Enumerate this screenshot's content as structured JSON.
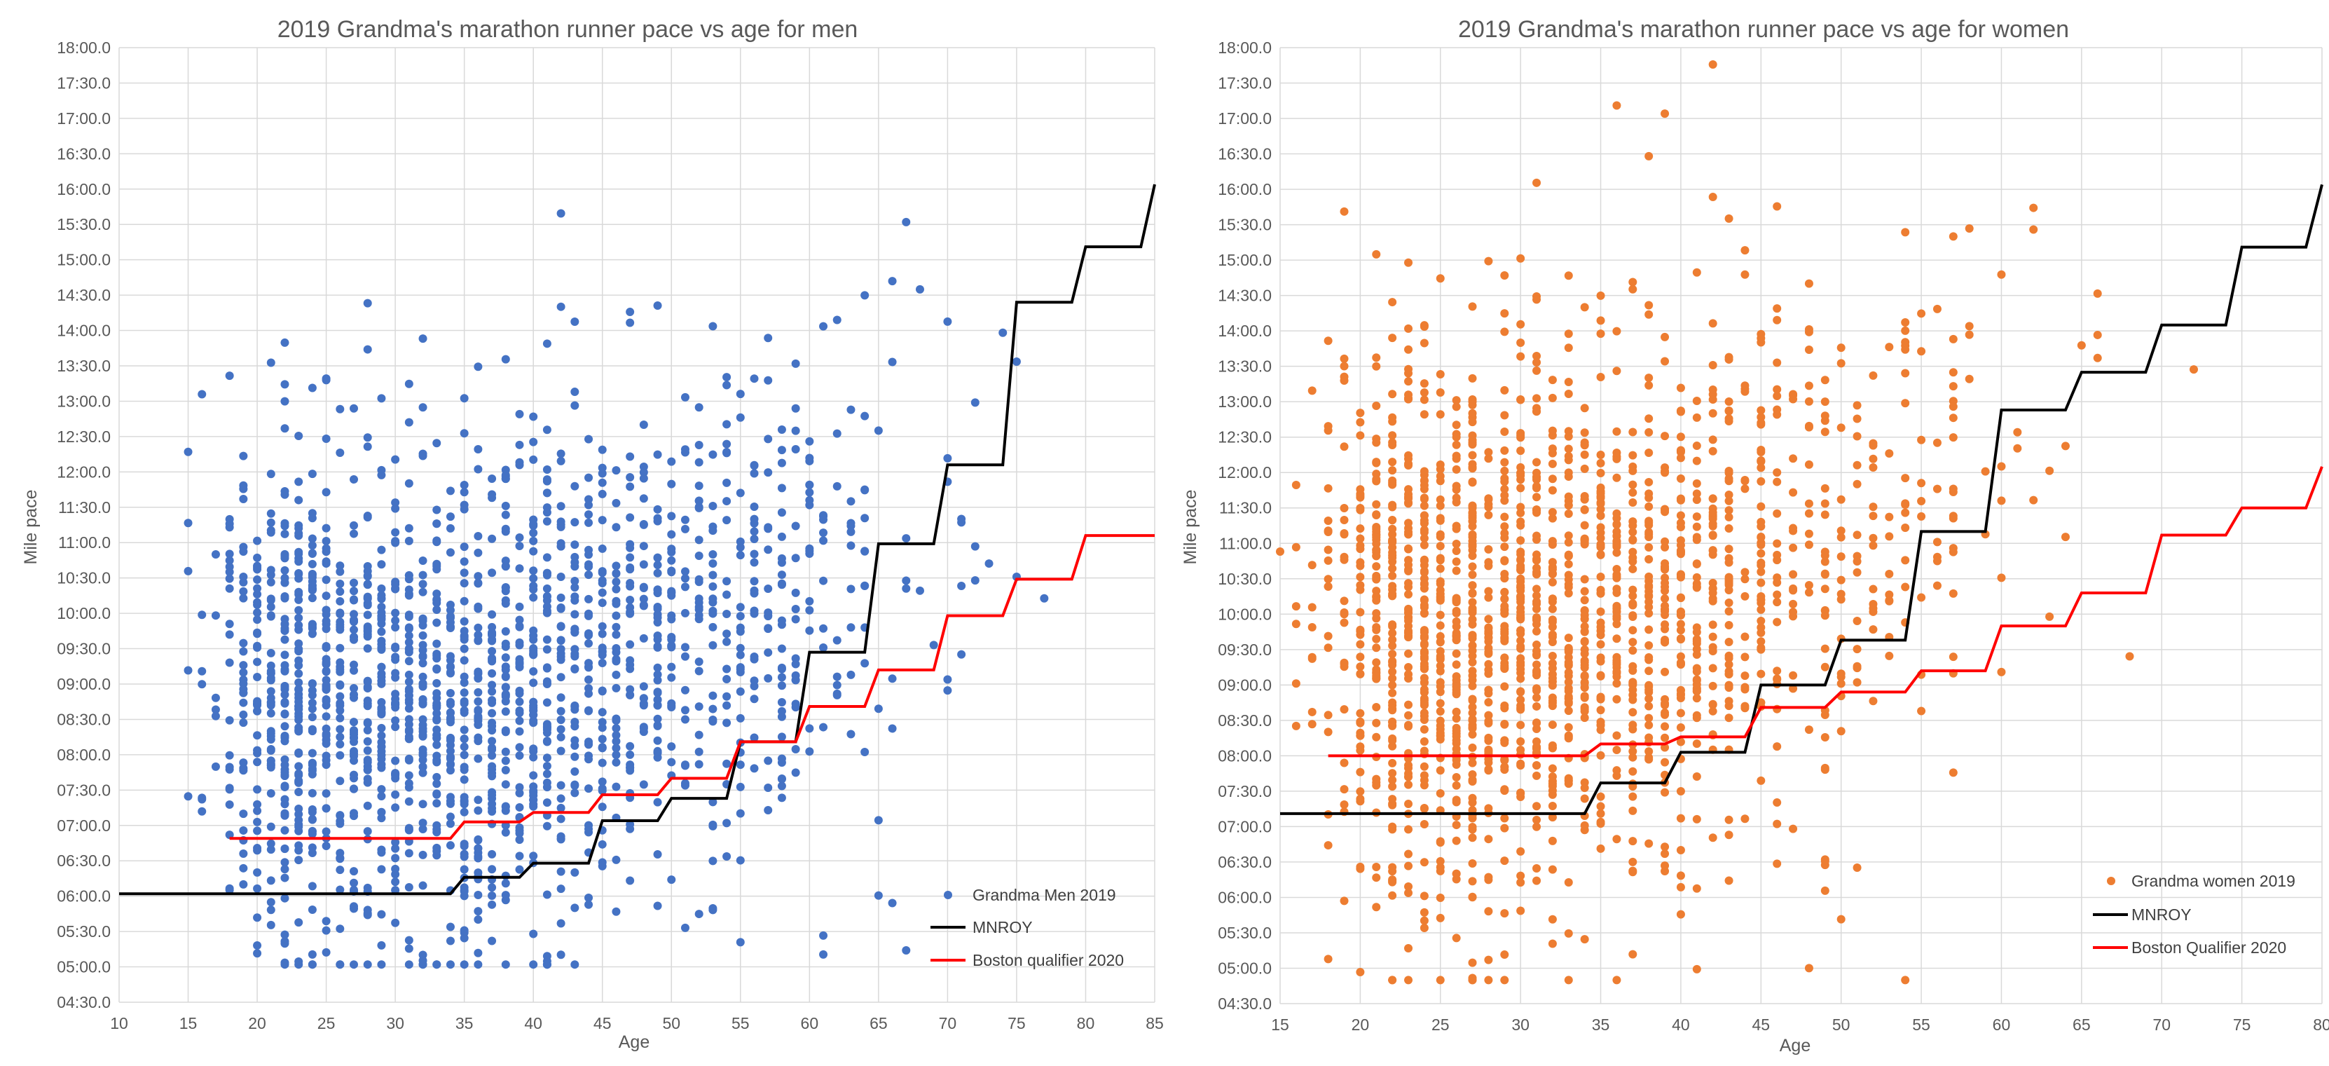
{
  "chart_data": [
    {
      "type": "scatter",
      "title": "2019 Grandma's marathon runner pace vs age for men",
      "xlabel": "Age",
      "ylabel": "Mile pace",
      "xlim": [
        10,
        85
      ],
      "ylim_minutes": [
        270,
        1080
      ],
      "x_ticks": [
        10,
        15,
        20,
        25,
        30,
        35,
        40,
        45,
        50,
        55,
        60,
        65,
        70,
        75,
        80,
        85
      ],
      "y_ticks": [
        "18:00.0",
        "17:30.0",
        "17:00.0",
        "16:30.0",
        "16:00.0",
        "15:30.0",
        "15:00.0",
        "14:30.0",
        "14:00.0",
        "13:30.0",
        "13:00.0",
        "12:30.0",
        "12:00.0",
        "11:30.0",
        "11:00.0",
        "10:30.0",
        "10:00.0",
        "09:30.0",
        "09:00.0",
        "08:30.0",
        "08:00.0",
        "07:30.0",
        "07:00.0",
        "06:30.0",
        "06:00.0",
        "05:30.0",
        "05:00.0",
        "04:30.0"
      ],
      "grid": true,
      "legend_position": "bottom-right",
      "series": [
        {
          "name": "Grandma Men 2019",
          "kind": "scatter",
          "color": "#4472c4",
          "point_count": 1800,
          "seed": 1,
          "center_min": [
            [
              15,
              540
            ],
            [
              25,
              520
            ],
            [
              35,
              525
            ],
            [
              45,
              560
            ],
            [
              55,
              600
            ],
            [
              65,
              640
            ],
            [
              75,
              690
            ]
          ],
          "spread_min": 110,
          "age_weights": [
            [
              11,
              1
            ],
            [
              12,
              1
            ],
            [
              13,
              1
            ],
            [
              14,
              4
            ],
            [
              15,
              8
            ],
            [
              16,
              14
            ],
            [
              17,
              22
            ],
            [
              18,
              40
            ],
            [
              19,
              55
            ],
            [
              20,
              72
            ],
            [
              21,
              84
            ],
            [
              22,
              92
            ],
            [
              23,
              98
            ],
            [
              24,
              100
            ],
            [
              25,
              100
            ],
            [
              26,
              100
            ],
            [
              27,
              98
            ],
            [
              28,
              96
            ],
            [
              29,
              94
            ],
            [
              30,
              92
            ],
            [
              31,
              90
            ],
            [
              32,
              88
            ],
            [
              33,
              86
            ],
            [
              34,
              84
            ],
            [
              35,
              82
            ],
            [
              36,
              80
            ],
            [
              37,
              78
            ],
            [
              38,
              76
            ],
            [
              39,
              74
            ],
            [
              40,
              72
            ],
            [
              41,
              70
            ],
            [
              42,
              68
            ],
            [
              43,
              66
            ],
            [
              44,
              64
            ],
            [
              45,
              62
            ],
            [
              46,
              60
            ],
            [
              47,
              58
            ],
            [
              48,
              56
            ],
            [
              49,
              54
            ],
            [
              50,
              52
            ],
            [
              51,
              50
            ],
            [
              52,
              48
            ],
            [
              53,
              46
            ],
            [
              54,
              44
            ],
            [
              55,
              42
            ],
            [
              56,
              40
            ],
            [
              57,
              36
            ],
            [
              58,
              32
            ],
            [
              59,
              28
            ],
            [
              60,
              26
            ],
            [
              61,
              22
            ],
            [
              62,
              20
            ],
            [
              63,
              17
            ],
            [
              64,
              15
            ],
            [
              65,
              13
            ],
            [
              66,
              11
            ],
            [
              67,
              9
            ],
            [
              68,
              8
            ],
            [
              69,
              7
            ],
            [
              70,
              6
            ],
            [
              71,
              5
            ],
            [
              72,
              4
            ],
            [
              73,
              3
            ],
            [
              74,
              3
            ],
            [
              75,
              2
            ],
            [
              77,
              1
            ],
            [
              79,
              1
            ],
            [
              81,
              1
            ]
          ],
          "pace_range_min": [
            302,
            1078
          ]
        },
        {
          "name": "MNROY",
          "kind": "step",
          "color": "#000000",
          "points": [
            [
              10,
              362
            ],
            [
              34,
              362
            ],
            [
              35,
              376
            ],
            [
              39,
              376
            ],
            [
              40,
              388
            ],
            [
              44,
              388
            ],
            [
              45,
              424
            ],
            [
              49,
              424
            ],
            [
              50,
              443
            ],
            [
              54,
              443
            ],
            [
              55,
              491
            ],
            [
              59,
              491
            ],
            [
              60,
              567
            ],
            [
              64,
              567
            ],
            [
              65,
              659
            ],
            [
              69,
              659
            ],
            [
              70,
              726
            ],
            [
              74,
              726
            ],
            [
              75,
              864
            ],
            [
              79,
              864
            ],
            [
              80,
              911
            ],
            [
              84,
              911
            ],
            [
              85,
              964
            ]
          ]
        },
        {
          "name": "Boston qualifier 2020",
          "kind": "step",
          "color": "#ff0000",
          "points": [
            [
              18,
              409
            ],
            [
              34,
              409
            ],
            [
              35,
              423
            ],
            [
              39,
              423
            ],
            [
              40,
              431
            ],
            [
              44,
              431
            ],
            [
              45,
              446
            ],
            [
              49,
              446
            ],
            [
              50,
              460
            ],
            [
              54,
              460
            ],
            [
              55,
              491
            ],
            [
              59,
              491
            ],
            [
              60,
              521
            ],
            [
              64,
              521
            ],
            [
              65,
              552
            ],
            [
              69,
              552
            ],
            [
              70,
              598
            ],
            [
              74,
              598
            ],
            [
              75,
              629
            ],
            [
              79,
              629
            ],
            [
              80,
              666
            ],
            [
              85,
              666
            ]
          ]
        }
      ]
    },
    {
      "type": "scatter",
      "title": "2019 Grandma's marathon runner pace vs age for women",
      "xlabel": "Age",
      "ylabel": "Mile pace",
      "xlim": [
        15,
        80
      ],
      "ylim_minutes": [
        270,
        1080
      ],
      "x_ticks": [
        15,
        20,
        25,
        30,
        35,
        40,
        45,
        50,
        55,
        60,
        65,
        70,
        75,
        80
      ],
      "y_ticks": [
        "18:00.0",
        "17:30.0",
        "17:00.0",
        "16:30.0",
        "16:00.0",
        "15:30.0",
        "15:00.0",
        "14:30.0",
        "14:00.0",
        "13:30.0",
        "13:00.0",
        "12:30.0",
        "12:00.0",
        "11:30.0",
        "11:00.0",
        "10:30.0",
        "10:00.0",
        "09:30.0",
        "09:00.0",
        "08:30.0",
        "08:00.0",
        "07:30.0",
        "07:00.0",
        "06:30.0",
        "06:00.0",
        "05:30.0",
        "05:00.0",
        "04:30.0"
      ],
      "grid": true,
      "legend_position": "bottom-right",
      "series": [
        {
          "name": "Grandma women 2019",
          "kind": "scatter",
          "color": "#ed7d31",
          "point_count": 1800,
          "seed": 7,
          "center_min": [
            [
              15,
              600
            ],
            [
              25,
              590
            ],
            [
              35,
              595
            ],
            [
              45,
              630
            ],
            [
              55,
              680
            ],
            [
              65,
              720
            ],
            [
              75,
              760
            ]
          ],
          "spread_min": 115,
          "age_weights": [
            [
              15,
              2
            ],
            [
              16,
              4
            ],
            [
              17,
              8
            ],
            [
              18,
              20
            ],
            [
              19,
              40
            ],
            [
              20,
              60
            ],
            [
              21,
              75
            ],
            [
              22,
              88
            ],
            [
              23,
              96
            ],
            [
              24,
              100
            ],
            [
              25,
              100
            ],
            [
              26,
              98
            ],
            [
              27,
              96
            ],
            [
              28,
              94
            ],
            [
              29,
              92
            ],
            [
              30,
              90
            ],
            [
              31,
              86
            ],
            [
              32,
              82
            ],
            [
              33,
              78
            ],
            [
              34,
              74
            ],
            [
              35,
              72
            ],
            [
              36,
              70
            ],
            [
              37,
              68
            ],
            [
              38,
              66
            ],
            [
              39,
              64
            ],
            [
              40,
              62
            ],
            [
              41,
              58
            ],
            [
              42,
              54
            ],
            [
              43,
              50
            ],
            [
              44,
              46
            ],
            [
              45,
              42
            ],
            [
              46,
              38
            ],
            [
              47,
              34
            ],
            [
              48,
              30
            ],
            [
              49,
              26
            ],
            [
              50,
              22
            ],
            [
              51,
              20
            ],
            [
              52,
              18
            ],
            [
              53,
              16
            ],
            [
              54,
              14
            ],
            [
              55,
              12
            ],
            [
              56,
              10
            ],
            [
              57,
              9
            ],
            [
              58,
              8
            ],
            [
              59,
              7
            ],
            [
              60,
              6
            ],
            [
              61,
              5
            ],
            [
              62,
              4
            ],
            [
              63,
              3
            ],
            [
              64,
              3
            ],
            [
              65,
              2
            ],
            [
              66,
              2
            ],
            [
              67,
              2
            ],
            [
              68,
              1
            ],
            [
              69,
              1
            ],
            [
              70,
              1
            ],
            [
              72,
              1
            ],
            [
              76,
              1
            ]
          ],
          "pace_range_min": [
            290,
            1078
          ]
        },
        {
          "name": "MNROY",
          "kind": "step",
          "color": "#000000",
          "points": [
            [
              15,
              431
            ],
            [
              34,
              431
            ],
            [
              35,
              457
            ],
            [
              39,
              457
            ],
            [
              40,
              483
            ],
            [
              44,
              483
            ],
            [
              45,
              540
            ],
            [
              49,
              540
            ],
            [
              50,
              578
            ],
            [
              54,
              578
            ],
            [
              55,
              670
            ],
            [
              59,
              670
            ],
            [
              60,
              773
            ],
            [
              64,
              773
            ],
            [
              65,
              805
            ],
            [
              69,
              805
            ],
            [
              70,
              845
            ],
            [
              74,
              845
            ],
            [
              75,
              911
            ],
            [
              79,
              911
            ],
            [
              80,
              964
            ]
          ]
        },
        {
          "name": "Boston Qualifier 2020",
          "kind": "step",
          "color": "#ff0000",
          "points": [
            [
              18,
              480
            ],
            [
              34,
              480
            ],
            [
              35,
              490
            ],
            [
              39,
              490
            ],
            [
              40,
              496
            ],
            [
              44,
              496
            ],
            [
              45,
              521
            ],
            [
              49,
              521
            ],
            [
              50,
              534
            ],
            [
              54,
              534
            ],
            [
              55,
              552
            ],
            [
              59,
              552
            ],
            [
              60,
              590
            ],
            [
              64,
              590
            ],
            [
              65,
              618
            ],
            [
              69,
              618
            ],
            [
              70,
              667
            ],
            [
              74,
              667
            ],
            [
              75,
              690
            ],
            [
              79,
              690
            ],
            [
              80,
              725
            ]
          ]
        }
      ]
    }
  ]
}
